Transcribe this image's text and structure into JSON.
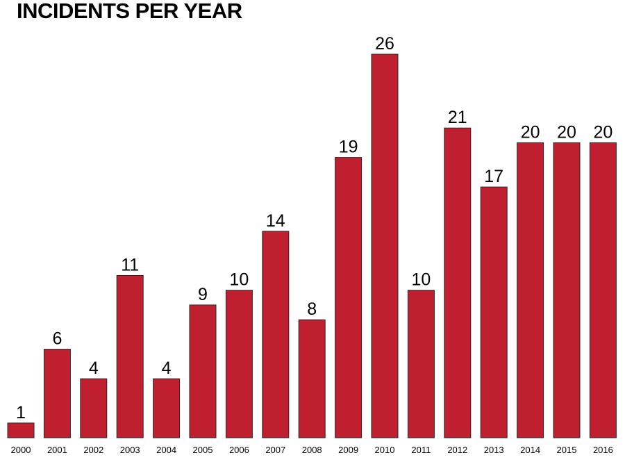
{
  "colors": {
    "bar": "#c01f2f",
    "bar_stroke": "#2a2a2a",
    "text": "#000000",
    "background": "#ffffff"
  },
  "chart_data": {
    "type": "bar",
    "title": "INCIDENTS PER YEAR",
    "xlabel": "",
    "ylabel": "",
    "grid": false,
    "legend": "none",
    "ylim": [
      0,
      26
    ],
    "categories": [
      "2000",
      "2001",
      "2002",
      "2003",
      "2004",
      "2005",
      "2006",
      "2007",
      "2008",
      "2009",
      "2010",
      "2011",
      "2012",
      "2013",
      "2014",
      "2015",
      "2016"
    ],
    "values": [
      1,
      6,
      4,
      11,
      4,
      9,
      10,
      14,
      8,
      19,
      26,
      10,
      21,
      17,
      20,
      20,
      20
    ]
  }
}
